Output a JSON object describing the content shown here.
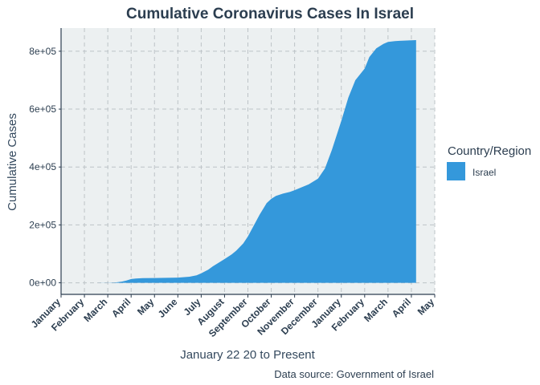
{
  "chart_data": {
    "type": "area",
    "title": "Cumulative Coronavirus Cases In Israel",
    "xlabel": "January 22 20 to Present",
    "ylabel": "Cumulative Cases",
    "caption": "Data source: Government of Israel",
    "x_tick_labels": [
      "January",
      "February",
      "March",
      "April",
      "May",
      "June",
      "July",
      "August",
      "September",
      "October",
      "November",
      "December",
      "January",
      "February",
      "March",
      "April",
      "May"
    ],
    "y_tick_labels": [
      "0e+00",
      "2e+05",
      "4e+05",
      "6e+05",
      "8e+05"
    ],
    "y_tick_values": [
      0,
      200000,
      400000,
      600000,
      800000
    ],
    "ylim": [
      -40000,
      880000
    ],
    "xlim_months": [
      0,
      16
    ],
    "grid": true,
    "legend": {
      "title": "Country/Region",
      "position": "right"
    },
    "series": [
      {
        "name": "Israel",
        "color": "#3498db",
        "x_months": [
          0.7,
          1.0,
          1.5,
          2.0,
          2.3,
          2.6,
          2.8,
          3.0,
          3.2,
          3.5,
          4.0,
          4.5,
          5.0,
          5.5,
          5.8,
          6.0,
          6.3,
          6.5,
          6.8,
          7.0,
          7.3,
          7.5,
          7.8,
          8.0,
          8.3,
          8.5,
          8.8,
          9.0,
          9.2,
          9.5,
          9.8,
          10.0,
          10.3,
          10.6,
          11.0,
          11.3,
          11.6,
          12.0,
          12.3,
          12.6,
          13.0,
          13.2,
          13.5,
          13.8,
          14.0,
          14.3,
          14.5,
          14.8,
          15.0,
          15.2
        ],
        "y_values": [
          0,
          0,
          0,
          200,
          1000,
          4000,
          8000,
          13000,
          15000,
          16000,
          16500,
          17000,
          18000,
          21000,
          26000,
          33000,
          45000,
          57000,
          72000,
          82000,
          98000,
          111000,
          136000,
          160000,
          205000,
          235000,
          275000,
          290000,
          300000,
          308000,
          314000,
          320000,
          330000,
          340000,
          360000,
          395000,
          460000,
          560000,
          640000,
          700000,
          740000,
          780000,
          810000,
          825000,
          832000,
          835000,
          836000,
          837000,
          838000,
          838500
        ]
      }
    ]
  }
}
